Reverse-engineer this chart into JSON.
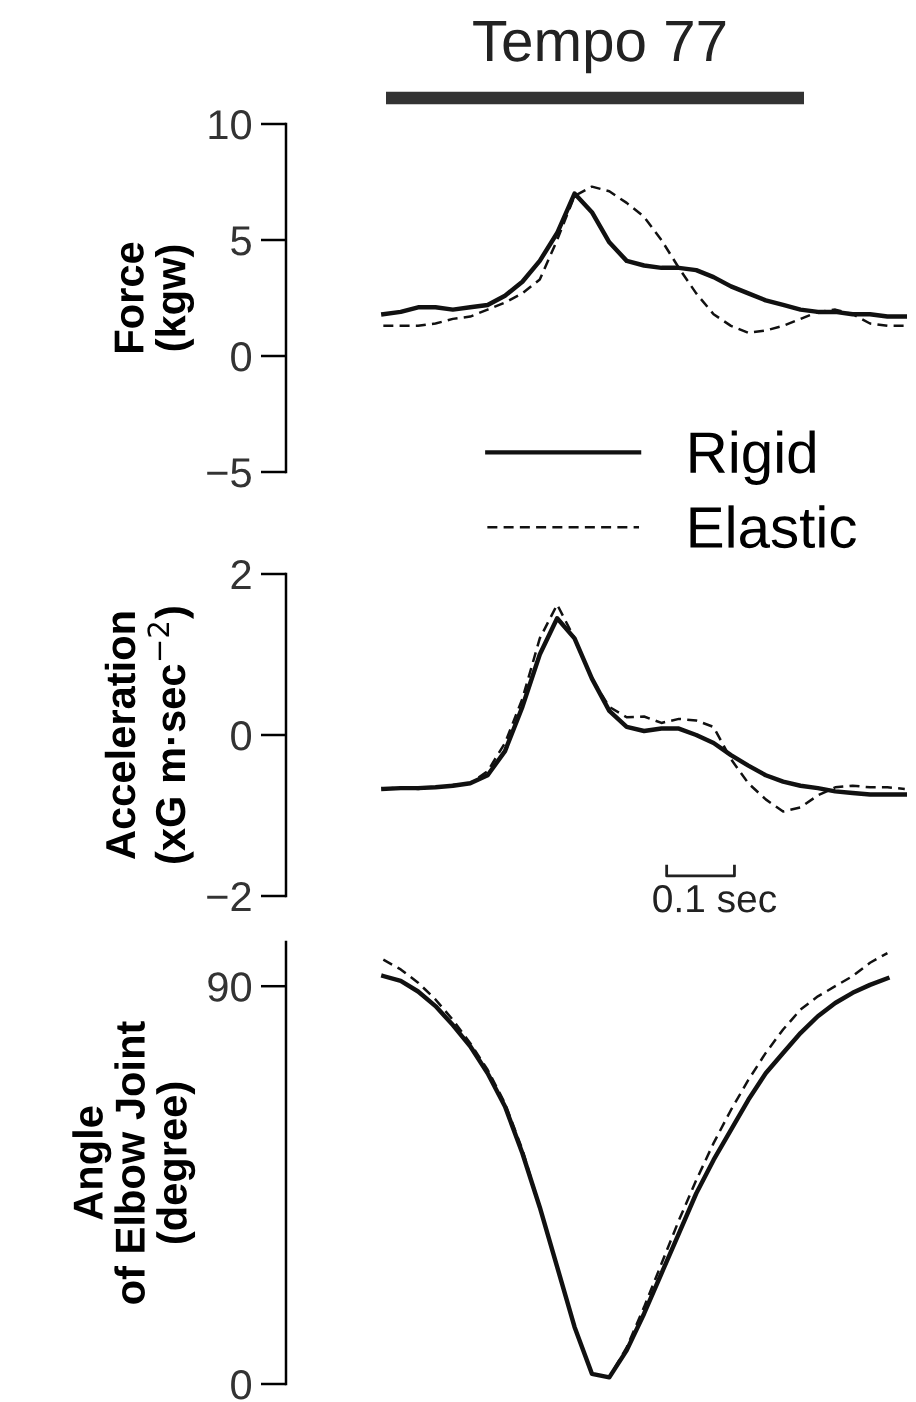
{
  "chart_data": [
    {
      "type": "line",
      "title": "Tempo 77",
      "ylabel": "Force\n(kgw)",
      "categories": [
        null,
        null,
        null,
        null,
        null,
        null,
        null,
        null,
        null,
        null,
        null,
        null,
        null,
        null,
        null,
        null,
        null,
        null,
        null,
        null,
        null,
        null,
        null,
        null,
        null,
        null,
        null,
        null,
        null,
        null,
        null
      ],
      "series": [
        {
          "name": "Rigid",
          "color": "#111111",
          "line_style": "solid",
          "values": [
            1.8,
            1.9,
            2.1,
            2.1,
            2.0,
            2.1,
            2.2,
            2.6,
            3.2,
            4.1,
            5.3,
            7.0,
            6.2,
            4.9,
            4.1,
            3.9,
            3.8,
            3.8,
            3.7,
            3.4,
            3.0,
            2.7,
            2.4,
            2.2,
            2.0,
            1.9,
            1.9,
            1.8,
            1.8,
            1.7,
            1.7
          ]
        },
        {
          "name": "Elastic",
          "color": "#111111",
          "line_style": "dashed",
          "values": [
            1.3,
            1.3,
            1.3,
            1.4,
            1.6,
            1.7,
            2.0,
            2.3,
            2.7,
            3.3,
            5.0,
            6.9,
            7.3,
            7.1,
            6.6,
            6.0,
            5.0,
            3.8,
            2.7,
            1.8,
            1.3,
            1.0,
            1.1,
            1.3,
            1.6,
            1.9,
            2.0,
            1.8,
            1.4,
            1.3,
            1.3
          ]
        }
      ],
      "ylim": [
        -5,
        10
      ],
      "yticks": [
        10,
        5,
        0,
        {
          "value": -5,
          "label": "−5"
        }
      ],
      "tick_labels": "y",
      "legend": "bottom right",
      "grid": false
    },
    {
      "type": "line",
      "ylabel": "Acceleration\n(xG m·sec$^{−2}$)",
      "categories": [
        null,
        null,
        null,
        null,
        null,
        null,
        null,
        null,
        null,
        null,
        null,
        null,
        null,
        null,
        null,
        null,
        null,
        null,
        null,
        null,
        null,
        null,
        null,
        null,
        null,
        null,
        null,
        null,
        null,
        null,
        null
      ],
      "series": [
        {
          "color": "#111111",
          "line_style": "solid",
          "values": [
            -0.67,
            -0.66,
            -0.66,
            -0.65,
            -0.63,
            -0.6,
            -0.5,
            -0.2,
            0.35,
            1.0,
            1.45,
            1.2,
            0.7,
            0.3,
            0.1,
            0.05,
            0.08,
            0.08,
            0.0,
            -0.1,
            -0.25,
            -0.38,
            -0.5,
            -0.58,
            -0.63,
            -0.66,
            -0.7,
            -0.72,
            -0.74,
            -0.74,
            -0.74
          ]
        },
        {
          "color": "#111111",
          "line_style": "dashed",
          "values": [
            -0.67,
            -0.65,
            -0.67,
            -0.65,
            -0.62,
            -0.6,
            -0.45,
            -0.1,
            0.45,
            1.2,
            1.62,
            1.2,
            0.7,
            0.35,
            0.22,
            0.23,
            0.15,
            0.2,
            0.18,
            0.1,
            -0.3,
            -0.6,
            -0.8,
            -0.95,
            -0.9,
            -0.75,
            -0.65,
            -0.63,
            -0.65,
            -0.65,
            -0.67
          ]
        }
      ],
      "ylim": [
        -2,
        2
      ],
      "yticks": [
        2,
        0,
        {
          "value": -2,
          "label": "−2"
        }
      ],
      "tick_labels": "y",
      "annotations": [
        "0.1 sec"
      ],
      "grid": false
    },
    {
      "type": "line",
      "ylabel": "Angle\nof Elbow Joint\n(degree)",
      "categories": [
        null,
        null,
        null,
        null,
        null,
        null,
        null,
        null,
        null,
        null,
        null,
        null,
        null,
        null,
        null,
        null,
        null,
        null,
        null,
        null,
        null,
        null,
        null,
        null,
        null,
        null,
        null,
        null,
        null,
        null,
        null
      ],
      "series": [
        {
          "color": "#111111",
          "line_style": "solid",
          "values": [
            92.3,
            91.2,
            88.8,
            85.5,
            81.2,
            76.4,
            70.3,
            62.8,
            52.2,
            40,
            26.5,
            12.9,
            2.3,
            1.5,
            7.6,
            15.9,
            25,
            34,
            43.1,
            50.7,
            57.5,
            64.3,
            70.3,
            74.9,
            79.4,
            83.2,
            86.2,
            88.5,
            90.3,
            91.8,
            null
          ]
        },
        {
          "color": "#111111",
          "line_style": "dashed",
          "values": [
            96,
            93.8,
            90.8,
            87,
            82.4,
            77.1,
            71.1,
            63.5,
            53,
            40,
            26.5,
            12.9,
            2.3,
            1.5,
            8.3,
            17.4,
            27.2,
            37,
            46.1,
            54.5,
            62,
            68.8,
            74.9,
            80.2,
            84.7,
            87.7,
            90,
            92.3,
            95.3,
            97.5,
            null
          ]
        }
      ],
      "ylim": [
        0,
        100
      ],
      "yticks": [
        90,
        0
      ],
      "tick_labels": "y",
      "grid": false
    }
  ]
}
